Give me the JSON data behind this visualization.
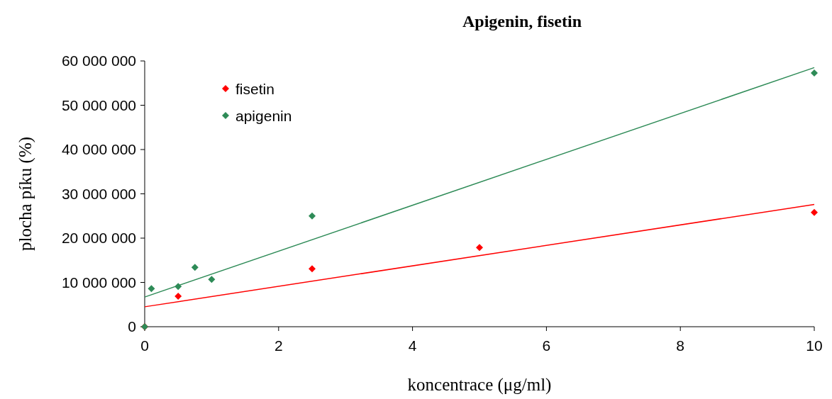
{
  "chart_data": {
    "type": "scatter",
    "title": "Apigenin, fisetin",
    "xlabel": "koncentrace (μg/ml)",
    "ylabel": "plocha píku (%)",
    "xlim": [
      0,
      10
    ],
    "xticks": [
      0,
      2,
      4,
      6,
      8,
      10
    ],
    "ylim": [
      0,
      60000000
    ],
    "yticks": [
      {
        "value": 0,
        "label": "0"
      },
      {
        "value": 10000000,
        "label": "10 000 000"
      },
      {
        "value": 20000000,
        "label": "20 000 000"
      },
      {
        "value": 30000000,
        "label": "30 000 000"
      },
      {
        "value": 40000000,
        "label": "40 000 000"
      },
      {
        "value": 50000000,
        "label": "50 000 000"
      },
      {
        "value": 60000000,
        "label": "60 000 000"
      }
    ],
    "grid": false,
    "legend": "top left",
    "series": [
      {
        "name": "fisetin",
        "color": "#ff0000",
        "marker": "diamond",
        "x": [
          0,
          0.5,
          2.5,
          5,
          10
        ],
        "values": [
          0,
          6900000,
          13100000,
          17900000,
          25800000
        ]
      },
      {
        "name": "apigenin",
        "color": "#2e8b57",
        "marker": "diamond",
        "x": [
          0,
          0.1,
          0.5,
          0.75,
          1,
          2.5,
          10
        ],
        "values": [
          0,
          8600000,
          9100000,
          13400000,
          10700000,
          25000000,
          57300000
        ]
      },
      {
        "type": "line",
        "marker": "none",
        "color": "#ff0000",
        "x": [
          0,
          10
        ],
        "values": [
          4500000,
          27600000
        ]
      },
      {
        "type": "line",
        "marker": "none",
        "color": "#2e8b57",
        "x": [
          0,
          10
        ],
        "values": [
          6700000,
          58500000
        ]
      }
    ]
  }
}
